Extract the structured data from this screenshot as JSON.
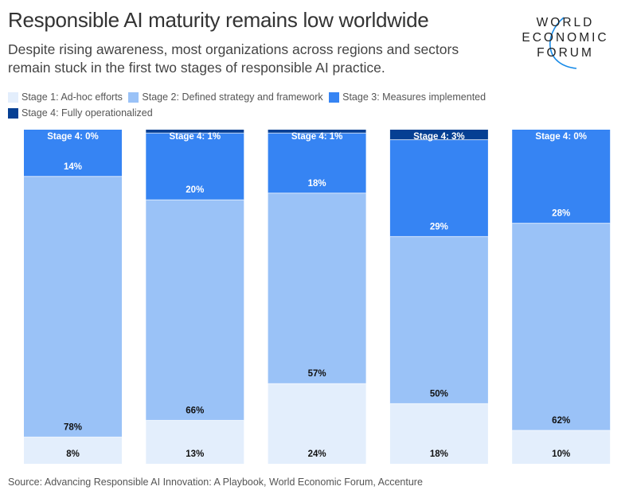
{
  "header": {
    "title": "Responsible AI maturity remains low worldwide",
    "subtitle": "Despite rising awareness, most organizations across regions and sectors remain stuck in the first two stages of responsible AI practice."
  },
  "logo": {
    "lines": [
      "WORLD",
      "ECONOMIC",
      "FORUM"
    ],
    "arc_color": "#1a8ce8"
  },
  "footer": {
    "source": "Source: Advancing Responsible AI Innovation: A Playbook, World Economic Forum, Accenture"
  },
  "chart_data": {
    "type": "bar",
    "stacked": true,
    "orientation": "vertical",
    "title": "Responsible AI maturity remains low worldwide",
    "xlabel": "",
    "ylabel": "",
    "ylim": [
      0,
      100
    ],
    "grid": false,
    "legend_position": "top-left",
    "categories": [
      "",
      "",
      "",
      "",
      ""
    ],
    "series": [
      {
        "name": "Stage 1: Ad-hoc efforts",
        "color": "#e3eefc",
        "label_color": "#111111",
        "values": [
          8,
          13,
          24,
          18,
          10
        ]
      },
      {
        "name": "Stage 2: Defined strategy and framework",
        "color": "#9ac2f7",
        "label_color": "#111111",
        "values": [
          78,
          66,
          57,
          50,
          62
        ]
      },
      {
        "name": "Stage 3: Measures implemented",
        "color": "#3684f3",
        "label_color": "#ffffff",
        "values": [
          14,
          20,
          18,
          29,
          28
        ]
      },
      {
        "name": "Stage 4: Fully operationalized",
        "color": "#053f93",
        "label_color": "#ffffff",
        "values": [
          0,
          1,
          1,
          3,
          0
        ]
      }
    ],
    "stage4_label_prefix": "Stage 4: ",
    "value_suffix": "%"
  }
}
